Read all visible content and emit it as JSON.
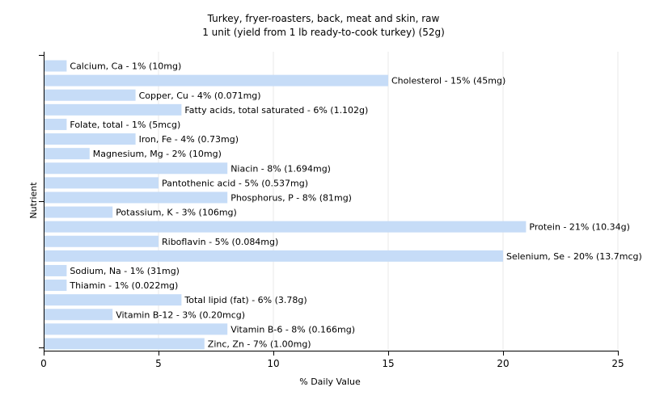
{
  "chart_data": {
    "type": "bar",
    "orientation": "horizontal",
    "title": "Turkey, fryer-roasters, back, meat and skin, raw",
    "subtitle": "1 unit (yield from 1 lb ready-to-cook turkey) (52g)",
    "xlabel": "% Daily Value",
    "ylabel": "Nutrient",
    "xlim": [
      0,
      25
    ],
    "xticks": [
      0,
      5,
      10,
      15,
      20,
      25
    ],
    "grid": true,
    "bar_color": "#c6dcf7",
    "categories": [
      "Calcium, Ca - 1% (10mg)",
      "Cholesterol - 15% (45mg)",
      "Copper, Cu - 4% (0.071mg)",
      "Fatty acids, total saturated - 6% (1.102g)",
      "Folate, total - 1% (5mcg)",
      "Iron, Fe - 4% (0.73mg)",
      "Magnesium, Mg - 2% (10mg)",
      "Niacin - 8% (1.694mg)",
      "Pantothenic acid - 5% (0.537mg)",
      "Phosphorus, P - 8% (81mg)",
      "Potassium, K - 3% (106mg)",
      "Protein - 21% (10.34g)",
      "Riboflavin - 5% (0.084mg)",
      "Selenium, Se - 20% (13.7mcg)",
      "Sodium, Na - 1% (31mg)",
      "Thiamin - 1% (0.022mg)",
      "Total lipid (fat) - 6% (3.78g)",
      "Vitamin B-12 - 3% (0.20mcg)",
      "Vitamin B-6 - 8% (0.166mg)",
      "Zinc, Zn - 7% (1.00mg)"
    ],
    "values": [
      1,
      15,
      4,
      6,
      1,
      4,
      2,
      8,
      5,
      8,
      3,
      21,
      5,
      20,
      1,
      1,
      6,
      3,
      8,
      7
    ]
  }
}
